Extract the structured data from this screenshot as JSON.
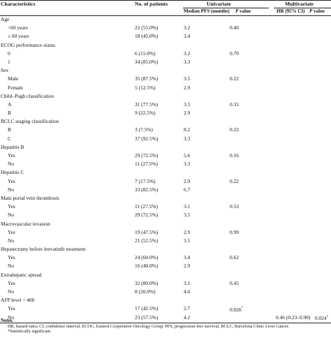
{
  "header": {
    "characteristics": "Characteristics",
    "no_patients": "No. of patients",
    "univariate": "Univariate",
    "multivariate": "Multivariate",
    "median_pfs": "Median PFS (months)",
    "p_value_u": "P",
    "p_value_u_suffix": " value",
    "hr_ci": "HR (95% CI)",
    "p_value_m": "P",
    "p_value_m_suffix": " value"
  },
  "rows": [
    {
      "label": "Age",
      "indent": false
    },
    {
      "label": "<60 years",
      "indent": true,
      "n": "22 (55.0%)",
      "pfs": "3.2",
      "p": "0.40"
    },
    {
      "label": "≥ 60 years",
      "indent": true,
      "n": "18 (45.0%)",
      "pfs": "3.4"
    },
    {
      "label": "ECOG performance status",
      "indent": false
    },
    {
      "label": "0",
      "indent": true,
      "n": "6 (15.0%)",
      "pfs": "3.2",
      "p": "0.70"
    },
    {
      "label": "1",
      "indent": true,
      "n": "34 (85.0%)",
      "pfs": "3.3"
    },
    {
      "label": "Sex",
      "indent": false
    },
    {
      "label": "Male",
      "indent": true,
      "n": "35 (87.5%)",
      "pfs": "3.5",
      "p": "0.22"
    },
    {
      "label": "Female",
      "indent": true,
      "n": "5 (12.5%)",
      "pfs": "2.9"
    },
    {
      "label": "Child–Pugh classification",
      "indent": false
    },
    {
      "label": "A",
      "indent": true,
      "n": "31 (77.5%)",
      "pfs": "3.5",
      "p": "0.31"
    },
    {
      "label": "B",
      "indent": true,
      "n": "9 (22.5%)",
      "pfs": "2.9"
    },
    {
      "label": "BCLC staging classification",
      "indent": false
    },
    {
      "label": "B",
      "indent": true,
      "n": "3 (7.5%)",
      "pfs": "8.2",
      "p": "0.22"
    },
    {
      "label": "C",
      "indent": true,
      "n": "37 (92.5%)",
      "pfs": "3.3"
    },
    {
      "label": "Hepatitis B",
      "indent": false
    },
    {
      "label": "Yes",
      "indent": true,
      "n": "29 (72.5%)",
      "pfs": "5.6",
      "p": "0.16"
    },
    {
      "label": "No",
      "indent": true,
      "n": "11 (27.5%)",
      "pfs": "3.3"
    },
    {
      "label": "Hepatitis C",
      "indent": false
    },
    {
      "label": "Yes",
      "indent": true,
      "n": "7 (17.5%)",
      "pfs": "2.9",
      "p": "0.22"
    },
    {
      "label": "No",
      "indent": true,
      "n": "33 (82.5%)",
      "pfs": "6.7"
    },
    {
      "label": "Main portal vein thrombosis",
      "indent": false
    },
    {
      "label": "Yes",
      "indent": true,
      "n": "11 (27.5%)",
      "pfs": "3.1",
      "p": "0.53"
    },
    {
      "label": "No",
      "indent": true,
      "n": "29 (72.5%)",
      "pfs": "3.5"
    },
    {
      "label": "Macrovascular invasion",
      "indent": false
    },
    {
      "label": "Yes",
      "indent": true,
      "n": "19 (47.5%)",
      "pfs": "2.9",
      "p": "0.99"
    },
    {
      "label": "No",
      "indent": true,
      "n": "21 (52.5%)",
      "pfs": "3.5"
    },
    {
      "label": "Hepatectomy before lenvatinib treatment",
      "indent": false
    },
    {
      "label": "Yes",
      "indent": true,
      "n": "24 (60.0%)",
      "pfs": "3.4",
      "p": "0.62"
    },
    {
      "label": "No",
      "indent": true,
      "n": "16 (40.0%)",
      "pfs": "2.9"
    },
    {
      "label": "Extrahepatic spread",
      "indent": false
    },
    {
      "label": "Yes",
      "indent": true,
      "n": "32 (80.0%)",
      "pfs": "3.1",
      "p": "0.45"
    },
    {
      "label": "No",
      "indent": true,
      "n": "8 (20.0%)",
      "pfs": "4.6"
    },
    {
      "label": "AFP level > 400",
      "indent": false
    },
    {
      "label": "Yes",
      "indent": true,
      "n": "17 (42.5%)",
      "pfs": "2.7",
      "p": "0.020",
      "p_star": "*"
    },
    {
      "label": "No",
      "indent": true,
      "n": "23 (57.5%)",
      "pfs": "4.2",
      "hr": "0.46 (0.23–0.90)",
      "pm": "0.024",
      "pm_star": "*"
    }
  ],
  "notes": {
    "title": "Notes.",
    "abbreviations": "HR, hazard ratio; CI, confidence interval; ECOG, Eastern Cooperative Oncology Group; PFS, progression-free survival; BCLC, Barcelona Clinic Liver Cancer.",
    "significance": "*Statistically significant."
  }
}
